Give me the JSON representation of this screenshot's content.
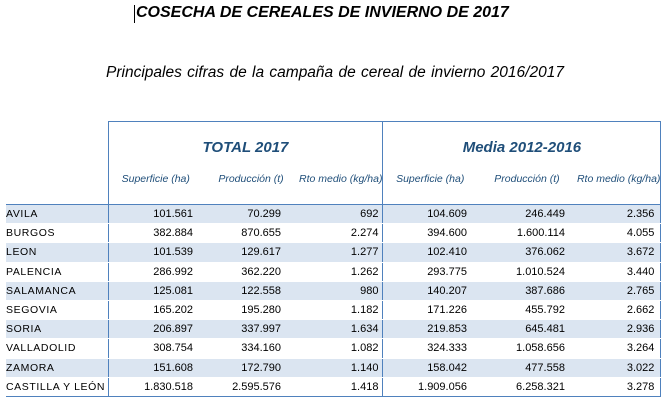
{
  "title": "COSECHA DE CEREALES DE INVIERNO DE 2017",
  "subtitle": "Principales cifras de la campaña de cereal de invierno 2016/2017",
  "table": {
    "groups": [
      "TOTAL 2017",
      "Media 2012-2016"
    ],
    "subheaders": [
      "Superficie (ha)",
      "Producción (t)",
      "Rto medio (kg/ha)",
      "Superficie (ha)",
      "Producción (t)",
      "Rto medio (kg/ha)"
    ],
    "rows": [
      [
        "AVILA",
        "101.561",
        "70.299",
        "692",
        "104.609",
        "246.449",
        "2.356"
      ],
      [
        "BURGOS",
        "382.884",
        "870.655",
        "2.274",
        "394.600",
        "1.600.114",
        "4.055"
      ],
      [
        "LEON",
        "101.539",
        "129.617",
        "1.277",
        "102.410",
        "376.062",
        "3.672"
      ],
      [
        "PALENCIA",
        "286.992",
        "362.220",
        "1.262",
        "293.775",
        "1.010.524",
        "3.440"
      ],
      [
        "SALAMANCA",
        "125.081",
        "122.558",
        "980",
        "140.207",
        "387.686",
        "2.765"
      ],
      [
        "SEGOVIA",
        "165.202",
        "195.280",
        "1.182",
        "171.226",
        "455.792",
        "2.662"
      ],
      [
        "SORIA",
        "206.897",
        "337.997",
        "1.634",
        "219.853",
        "645.481",
        "2.936"
      ],
      [
        "VALLADOLID",
        "308.754",
        "334.160",
        "1.082",
        "324.333",
        "1.058.656",
        "3.264"
      ],
      [
        "ZAMORA",
        "151.608",
        "172.790",
        "1.140",
        "158.042",
        "477.558",
        "3.022"
      ],
      [
        "CASTILLA Y LEÓN",
        "1.830.518",
        "2.595.576",
        "1.418",
        "1.909.056",
        "6.258.321",
        "3.278"
      ]
    ]
  }
}
